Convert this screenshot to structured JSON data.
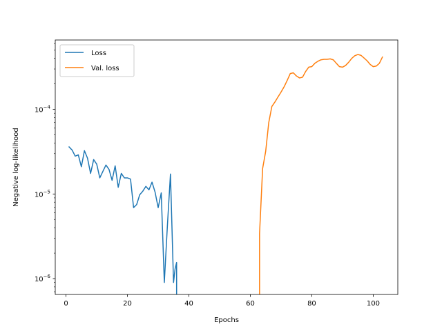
{
  "chart_data": {
    "type": "line",
    "title": "",
    "xlabel": "Epochs",
    "ylabel": "Negative log-likelihood",
    "xlim": [
      -3.5,
      108
    ],
    "ylim": [
      6.5e-07,
      0.00066
    ],
    "yscale": "log",
    "grid": false,
    "legend_position": "top-left",
    "x_ticks": [
      0,
      20,
      40,
      60,
      80,
      100
    ],
    "x_tick_labels": [
      "0",
      "20",
      "40",
      "60",
      "80",
      "100"
    ],
    "y_ticks": [
      1e-06,
      1e-05,
      0.0001
    ],
    "y_tick_labels": [
      {
        "base": "10",
        "exp": "−6"
      },
      {
        "base": "10",
        "exp": "−5"
      },
      {
        "base": "10",
        "exp": "−4"
      }
    ],
    "series": [
      {
        "name": "Loss",
        "color": "#1f77b4",
        "points": [
          [
            1,
            3.6e-05
          ],
          [
            2,
            3.3e-05
          ],
          [
            3,
            2.8e-05
          ],
          [
            4,
            2.9e-05
          ],
          [
            5,
            2.1e-05
          ],
          [
            6,
            3.25e-05
          ],
          [
            7,
            2.65e-05
          ],
          [
            8,
            1.75e-05
          ],
          [
            9,
            2.55e-05
          ],
          [
            10,
            2.25e-05
          ],
          [
            11,
            1.55e-05
          ],
          [
            12,
            1.85e-05
          ],
          [
            13,
            2.2e-05
          ],
          [
            14,
            1.95e-05
          ],
          [
            15,
            1.45e-05
          ],
          [
            16,
            2.15e-05
          ],
          [
            17,
            1.2e-05
          ],
          [
            18,
            1.75e-05
          ],
          [
            19,
            1.55e-05
          ],
          [
            20,
            1.55e-05
          ],
          [
            21,
            1.5e-05
          ],
          [
            22,
            6.9e-06
          ],
          [
            23,
            7.5e-06
          ],
          [
            24,
            9.8e-06
          ],
          [
            25,
            1.08e-05
          ],
          [
            26,
            1.23e-05
          ],
          [
            27,
            1.12e-05
          ],
          [
            28,
            1.38e-05
          ],
          [
            29,
            1.05e-05
          ],
          [
            30,
            6.9e-06
          ],
          [
            31,
            1.03e-05
          ],
          [
            32,
            9e-07
          ],
          [
            33,
            4.2e-06
          ],
          [
            34,
            1.72e-05
          ],
          [
            35,
            9e-07
          ],
          [
            35.5,
            1.3e-06
          ],
          [
            36,
            1.55e-06
          ],
          [
            36,
            6.5e-07
          ]
        ]
      },
      {
        "name": "Val. loss",
        "color": "#ff7f0e",
        "points": [
          [
            63,
            6.5e-07
          ],
          [
            63,
            3.4e-06
          ],
          [
            64,
            2e-05
          ],
          [
            65,
            3.2e-05
          ],
          [
            66,
            7e-05
          ],
          [
            67,
            0.000108
          ],
          [
            68,
            0.000122
          ],
          [
            69,
            0.00014
          ],
          [
            70,
            0.00016
          ],
          [
            71,
            0.000185
          ],
          [
            72,
            0.00022
          ],
          [
            73,
            0.000265
          ],
          [
            74,
            0.00027
          ],
          [
            75,
            0.000248
          ],
          [
            76,
            0.000235
          ],
          [
            77,
            0.00024
          ],
          [
            78,
            0.00028
          ],
          [
            79,
            0.000315
          ],
          [
            80,
            0.00032
          ],
          [
            81,
            0.00035
          ],
          [
            82,
            0.00037
          ],
          [
            83,
            0.000385
          ],
          [
            84,
            0.00039
          ],
          [
            85,
            0.00039
          ],
          [
            86,
            0.000395
          ],
          [
            87,
            0.000385
          ],
          [
            88,
            0.00035
          ],
          [
            89,
            0.00032
          ],
          [
            90,
            0.000315
          ],
          [
            91,
            0.00033
          ],
          [
            92,
            0.00036
          ],
          [
            93,
            0.0004
          ],
          [
            94,
            0.00043
          ],
          [
            95,
            0.000445
          ],
          [
            96,
            0.000435
          ],
          [
            97,
            0.000405
          ],
          [
            98,
            0.000375
          ],
          [
            99,
            0.00034
          ],
          [
            100,
            0.00032
          ],
          [
            101,
            0.000325
          ],
          [
            102,
            0.00035
          ],
          [
            103,
            0.000415
          ]
        ]
      }
    ]
  }
}
